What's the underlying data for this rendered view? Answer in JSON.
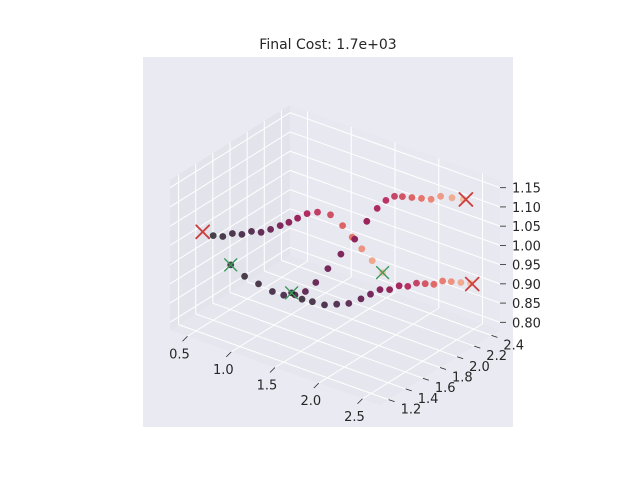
{
  "chart_data": {
    "type": "scatter3d",
    "title": "Final Cost: 1.7e+03",
    "xlabel": "",
    "ylabel": "",
    "zlabel": "",
    "xlim": [
      0.3,
      2.7
    ],
    "ylim": [
      1.1,
      2.5
    ],
    "zlim": [
      0.78,
      1.17
    ],
    "x_ticks": [
      "0.5",
      "1.0",
      "1.5",
      "2.0",
      "2.5"
    ],
    "y_ticks": [
      "1.2",
      "1.4",
      "1.6",
      "1.8",
      "2.0",
      "2.2",
      "2.4"
    ],
    "z_ticks": [
      "0.80",
      "0.85",
      "0.90",
      "0.95",
      "1.00",
      "1.05",
      "1.10",
      "1.15"
    ],
    "x_tick_values": [
      0.5,
      1.0,
      1.5,
      2.0,
      2.5
    ],
    "y_tick_values": [
      1.2,
      1.4,
      1.6,
      1.8,
      2.0,
      2.2,
      2.4
    ],
    "z_tick_values": [
      0.8,
      0.85,
      0.9,
      0.95,
      1.0,
      1.05,
      1.1,
      1.15
    ],
    "grid": true,
    "colors": {
      "pane": "#e6e6ee",
      "background": "#eaeaf2",
      "grid": "#ffffff",
      "end_marker": "#cc4040",
      "waypoint_marker": "#3a9a5a"
    },
    "trajectories": [
      {
        "points": [
          [
            0.5,
            1.4,
            1.0
          ],
          [
            0.58,
            1.43,
            1.0
          ],
          [
            0.66,
            1.46,
            1.01
          ],
          [
            0.74,
            1.49,
            1.01
          ],
          [
            0.82,
            1.52,
            1.02
          ],
          [
            0.9,
            1.55,
            1.02
          ],
          [
            0.98,
            1.58,
            1.03
          ],
          [
            1.05,
            1.62,
            1.04
          ],
          [
            1.12,
            1.65,
            1.05
          ],
          [
            1.18,
            1.69,
            1.06
          ],
          [
            1.24,
            1.74,
            1.07
          ],
          [
            1.3,
            1.8,
            1.07
          ],
          [
            1.38,
            1.87,
            1.06
          ],
          [
            1.46,
            1.93,
            1.03
          ],
          [
            1.53,
            1.97,
            1.0
          ],
          [
            1.6,
            2.01,
            0.97
          ],
          [
            1.68,
            2.05,
            0.94
          ],
          [
            1.76,
            2.09,
            0.91
          ]
        ]
      },
      {
        "points": [
          [
            0.7,
            1.4,
            0.94
          ],
          [
            0.8,
            1.46,
            0.91
          ],
          [
            0.9,
            1.52,
            0.89
          ],
          [
            1.0,
            1.58,
            0.87
          ],
          [
            1.08,
            1.63,
            0.86
          ],
          [
            1.16,
            1.68,
            0.86
          ],
          [
            1.24,
            1.72,
            0.87
          ],
          [
            1.3,
            1.78,
            0.89
          ],
          [
            1.36,
            1.86,
            0.92
          ],
          [
            1.42,
            1.95,
            0.95
          ],
          [
            1.48,
            2.05,
            0.98
          ],
          [
            1.54,
            2.13,
            1.02
          ],
          [
            1.6,
            2.19,
            1.05
          ],
          [
            1.66,
            2.23,
            1.07
          ],
          [
            1.72,
            2.27,
            1.08
          ],
          [
            1.78,
            2.3,
            1.08
          ],
          [
            1.86,
            2.33,
            1.08
          ],
          [
            1.94,
            2.36,
            1.08
          ],
          [
            2.02,
            2.39,
            1.08
          ],
          [
            2.1,
            2.42,
            1.09
          ],
          [
            2.2,
            2.45,
            1.09
          ],
          [
            2.3,
            2.48,
            1.09
          ]
        ]
      },
      {
        "points": [
          [
            1.2,
            1.6,
            0.88
          ],
          [
            1.26,
            1.66,
            0.86
          ],
          [
            1.32,
            1.72,
            0.85
          ],
          [
            1.4,
            1.78,
            0.84
          ],
          [
            1.48,
            1.84,
            0.84
          ],
          [
            1.56,
            1.9,
            0.84
          ],
          [
            1.64,
            1.96,
            0.85
          ],
          [
            1.7,
            2.01,
            0.86
          ],
          [
            1.76,
            2.06,
            0.87
          ],
          [
            1.83,
            2.1,
            0.87
          ],
          [
            1.9,
            2.14,
            0.88
          ],
          [
            1.97,
            2.17,
            0.88
          ],
          [
            2.04,
            2.2,
            0.89
          ],
          [
            2.11,
            2.23,
            0.89
          ],
          [
            2.18,
            2.26,
            0.89
          ],
          [
            2.25,
            2.29,
            0.9
          ],
          [
            2.32,
            2.32,
            0.9
          ],
          [
            2.4,
            2.35,
            0.9
          ],
          [
            2.48,
            2.38,
            0.9
          ]
        ]
      }
    ],
    "end_markers": [
      [
        0.38,
        1.4,
        1.0
      ],
      [
        2.32,
        2.49,
        1.09
      ],
      [
        2.5,
        2.38,
        0.9
      ]
    ],
    "waypoint_markers": [
      [
        0.7,
        1.4,
        0.94
      ],
      [
        1.2,
        1.6,
        0.88
      ],
      [
        1.76,
        2.09,
        0.91
      ]
    ]
  }
}
